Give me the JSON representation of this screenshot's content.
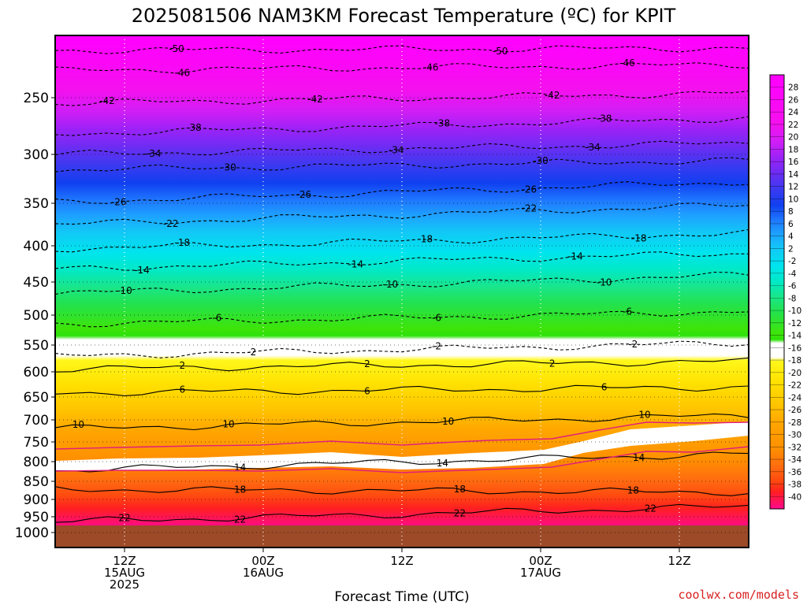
{
  "title": "2025081506 NAM3KM Forecast Temperature (ºC) for KPIT",
  "xlabel": "Forecast Time (UTC)",
  "credit": "coolwx.com/models",
  "x_ticks": [
    {
      "hour": 6,
      "lines": [
        "12Z",
        "15AUG",
        "2025"
      ]
    },
    {
      "hour": 18,
      "lines": [
        "00Z",
        "16AUG"
      ]
    },
    {
      "hour": 30,
      "lines": [
        "12Z"
      ]
    },
    {
      "hour": 42,
      "lines": [
        "00Z",
        "17AUG"
      ]
    },
    {
      "hour": 54,
      "lines": [
        "12Z"
      ]
    }
  ],
  "y_ticks": [
    "250",
    "300",
    "350",
    "400",
    "450",
    "500",
    "550",
    "600",
    "650",
    "700",
    "750",
    "800",
    "850",
    "900",
    "950",
    "1000"
  ],
  "colorbar_labels": [
    "28",
    "26",
    "24",
    "22",
    "20",
    "18",
    "16",
    "14",
    "12",
    "10",
    "8",
    "6",
    "4",
    "2",
    "-2",
    "-4",
    "-6",
    "-8",
    "-10",
    "-12",
    "-14",
    "-16",
    "-18",
    "-20",
    "-22",
    "-24",
    "-26",
    "-28",
    "-30",
    "-32",
    "-34",
    "-36",
    "-38",
    "-40"
  ],
  "colors": {
    "freezing_line": "#e0207a",
    "ground": "#9c4a28",
    "dashed_contour": "#000000",
    "credit": "#d82020"
  },
  "chart_data": {
    "type": "heatmap",
    "x_axis": "forecast hour from 2025081506 (06Z 15AUG 2025)",
    "x_range_hours": [
      0,
      60
    ],
    "y_axis": "pressure (hPa), inverted, log scale",
    "y_range_hpa": [
      1000,
      200
    ],
    "surface_pressure_hpa": 972,
    "grid": "dotted vertical lines at 12Z/00Z ticks and dotted horizontal lines at pressure ticks",
    "colorbar_position": "right",
    "units": "ºC",
    "contours": [
      {
        "value": -50,
        "p": [
          {
            "x": 0,
            "y": 210
          },
          {
            "x": 60,
            "y": 208
          }
        ],
        "labels": [
          {
            "x": 10.5
          },
          {
            "x": 38.5
          }
        ]
      },
      {
        "value": -46,
        "p": [
          {
            "x": 0,
            "y": 227
          },
          {
            "x": 60,
            "y": 222
          }
        ],
        "labels": [
          {
            "x": 11
          },
          {
            "x": 32.5
          },
          {
            "x": 49.5
          }
        ]
      },
      {
        "value": -42,
        "p": [
          {
            "x": 0,
            "y": 255
          },
          {
            "x": 60,
            "y": 246
          }
        ],
        "labels": [
          {
            "x": 4.5
          },
          {
            "x": 22.5
          },
          {
            "x": 43
          }
        ]
      },
      {
        "value": -38,
        "p": [
          {
            "x": 0,
            "y": 282
          },
          {
            "x": 60,
            "y": 268
          }
        ],
        "labels": [
          {
            "x": 12
          },
          {
            "x": 33.5
          },
          {
            "x": 47.5
          }
        ]
      },
      {
        "value": -34,
        "p": [
          {
            "x": 0,
            "y": 300
          },
          {
            "x": 60,
            "y": 290
          }
        ],
        "labels": [
          {
            "x": 8.5
          },
          {
            "x": 29.5
          },
          {
            "x": 46.5
          }
        ]
      },
      {
        "value": -30,
        "p": [
          {
            "x": 0,
            "y": 316
          },
          {
            "x": 60,
            "y": 306
          }
        ],
        "labels": [
          {
            "x": 15
          },
          {
            "x": 42
          }
        ]
      },
      {
        "value": -26,
        "p": [
          {
            "x": 0,
            "y": 349
          },
          {
            "x": 60,
            "y": 328
          }
        ],
        "labels": [
          {
            "x": 5.5
          },
          {
            "x": 21.5
          },
          {
            "x": 41
          }
        ]
      },
      {
        "value": -22,
        "p": [
          {
            "x": 0,
            "y": 375
          },
          {
            "x": 60,
            "y": 352
          }
        ],
        "labels": [
          {
            "x": 10
          },
          {
            "x": 41
          }
        ]
      },
      {
        "value": -18,
        "p": [
          {
            "x": 0,
            "y": 404
          },
          {
            "x": 60,
            "y": 385
          }
        ],
        "labels": [
          {
            "x": 11
          },
          {
            "x": 32
          },
          {
            "x": 50.5
          }
        ]
      },
      {
        "value": -14,
        "p": [
          {
            "x": 0,
            "y": 432
          },
          {
            "x": 60,
            "y": 410
          }
        ],
        "labels": [
          {
            "x": 7.5
          },
          {
            "x": 26
          },
          {
            "x": 45
          }
        ]
      },
      {
        "value": -10,
        "p": [
          {
            "x": 0,
            "y": 467
          },
          {
            "x": 60,
            "y": 440
          }
        ],
        "labels": [
          {
            "x": 6
          },
          {
            "x": 29
          },
          {
            "x": 47.5
          }
        ]
      },
      {
        "value": -6,
        "p": [
          {
            "x": 0,
            "y": 515
          },
          {
            "x": 60,
            "y": 494
          }
        ],
        "labels": [
          {
            "x": 14
          },
          {
            "x": 33
          },
          {
            "x": 49.5
          }
        ]
      },
      {
        "value": -2,
        "p": [
          {
            "x": 0,
            "y": 571
          },
          {
            "x": 60,
            "y": 546
          }
        ],
        "labels": [
          {
            "x": 17
          },
          {
            "x": 33
          },
          {
            "x": 50
          }
        ]
      },
      {
        "value": 2,
        "p": [
          {
            "x": 0,
            "y": 595
          },
          {
            "x": 60,
            "y": 580
          }
        ],
        "labels": [
          {
            "x": 11
          },
          {
            "x": 27
          },
          {
            "x": 43
          }
        ]
      },
      {
        "value": 6,
        "p": [
          {
            "x": 0,
            "y": 642
          },
          {
            "x": 60,
            "y": 630
          }
        ],
        "labels": [
          {
            "x": 11
          },
          {
            "x": 27
          },
          {
            "x": 47.5
          }
        ]
      },
      {
        "value": 10,
        "p": [
          {
            "x": 0,
            "y": 720
          },
          {
            "x": 60,
            "y": 690
          }
        ],
        "labels": [
          {
            "x": 2
          },
          {
            "x": 15
          },
          {
            "x": 34
          },
          {
            "x": 51
          }
        ]
      },
      {
        "value": 14,
        "p": [
          {
            "x": 0,
            "y": 822
          },
          {
            "x": 60,
            "y": 780
          }
        ],
        "labels": [
          {
            "x": 16
          },
          {
            "x": 33.5
          },
          {
            "x": 50.5
          }
        ]
      },
      {
        "value": 18,
        "p": [
          {
            "x": 0,
            "y": 872
          },
          {
            "x": 60,
            "y": 880
          }
        ],
        "labels": [
          {
            "x": 16
          },
          {
            "x": 35
          },
          {
            "x": 50
          }
        ]
      },
      {
        "value": 22,
        "p": [
          {
            "x": 0,
            "y": 965
          },
          {
            "x": 60,
            "y": 920
          }
        ],
        "labels": [
          {
            "x": 6
          },
          {
            "x": 16
          },
          {
            "x": 35
          },
          {
            "x": 51.5
          }
        ]
      }
    ]
  }
}
